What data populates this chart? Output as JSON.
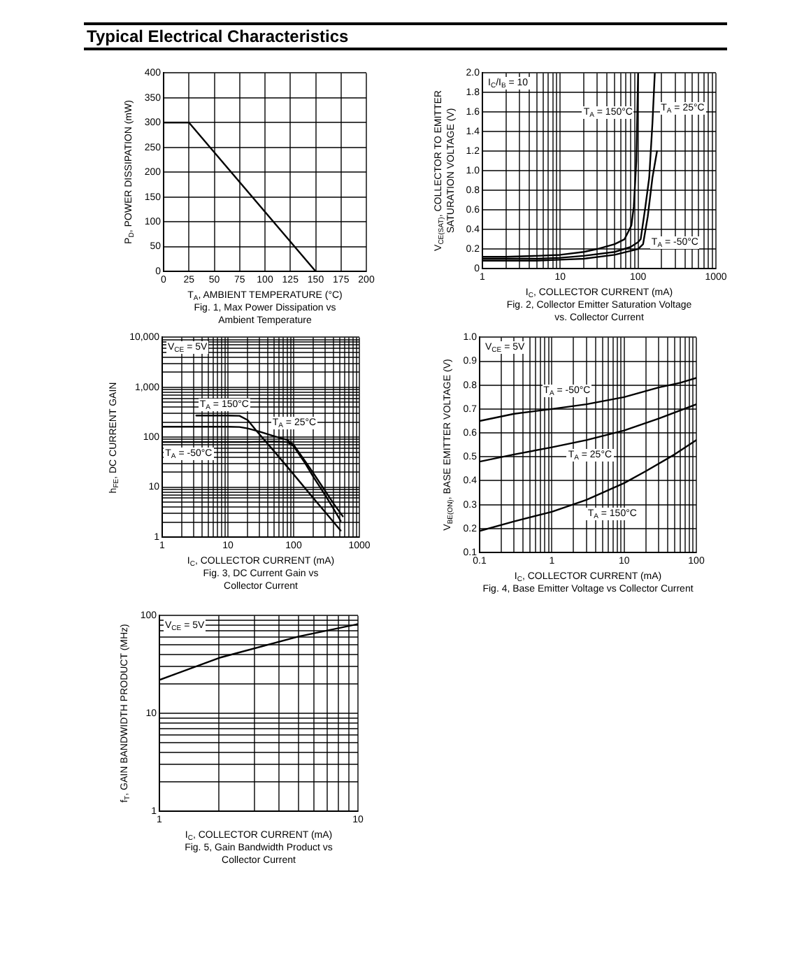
{
  "chart_data": [
    {
      "type": "line",
      "title": "Typical Electrical Characteristics",
      "xlabel": "T$_{A}$, AMBIENT TEMPERATURE (°C)",
      "ylabel": "P$_{D}$, POWER DISSIPATION (mW)",
      "annotations": [
        "Fig. 1, Max Power Dissipation vs\nAmbient Temperature"
      ],
      "x": [
        0,
        25,
        150
      ],
      "series": [
        {
          "color": "#000000",
          "values": [
            300,
            300,
            0
          ]
        }
      ],
      "xlim": [
        0,
        200
      ],
      "ylim": [
        0,
        400
      ],
      "xticks": [
        0,
        25,
        50,
        75,
        100,
        125,
        150,
        175,
        200
      ],
      "yticks": [
        0,
        50,
        100,
        150,
        200,
        250,
        300,
        350,
        400
      ],
      "grid": true,
      "legend": false,
      "marker": "none",
      "line_style": "solid"
    },
    {
      "type": "line",
      "xlabel": "I$_{C}$, COLLECTOR CURRENT (mA)",
      "ylabel": "V$_{CE(SAT)}$, COLLECTOR TO EMITTER\nSATURATION VOLTAGE (V)",
      "annotations": [
        "I$_{C}$/I$_{B}$ = 10",
        "Fig. 2, Collector Emitter Saturation Voltage\nvs. Collector Current"
      ],
      "series": [
        {
          "name": "T$_{A}$ = 150°C",
          "color": "#000000",
          "x": [
            1,
            2,
            5,
            10,
            20,
            30,
            50,
            67,
            82,
            88,
            95,
            100
          ],
          "values": [
            0.12,
            0.12,
            0.13,
            0.14,
            0.17,
            0.2,
            0.25,
            0.3,
            0.44,
            0.63,
            1.1,
            2.0
          ]
        },
        {
          "name": "T$_{A}$ = 25°C",
          "color": "#000000",
          "x": [
            1,
            2,
            5,
            10,
            20,
            50,
            80,
            100,
            108,
            124,
            139,
            153,
            164
          ],
          "values": [
            0.1,
            0.1,
            0.1,
            0.11,
            0.13,
            0.17,
            0.22,
            0.27,
            0.3,
            0.63,
            0.93,
            1.49,
            2.0
          ]
        },
        {
          "name": "T$_{A}$ = -50°C",
          "color": "#000000",
          "x": [
            1,
            2,
            5,
            10,
            20,
            50,
            100,
            116,
            133,
            153,
            175
          ],
          "values": [
            0.08,
            0.08,
            0.08,
            0.09,
            0.1,
            0.14,
            0.2,
            0.25,
            0.53,
            0.93,
            1.2
          ]
        }
      ],
      "log": "x",
      "xlim": [
        1,
        1000
      ],
      "ylim": [
        0,
        2
      ],
      "xticks": [
        1,
        {
          "value": 2,
          "label": null
        },
        {
          "value": 3,
          "label": null
        },
        {
          "value": 4,
          "label": null
        },
        {
          "value": 5,
          "label": null
        },
        {
          "value": 6,
          "label": null
        },
        {
          "value": 7,
          "label": null
        },
        {
          "value": 8,
          "label": null
        },
        {
          "value": 9,
          "label": null
        },
        10,
        {
          "value": 20,
          "label": null
        },
        {
          "value": 30,
          "label": null
        },
        {
          "value": 40,
          "label": null
        },
        {
          "value": 50,
          "label": null
        },
        {
          "value": 60,
          "label": null
        },
        {
          "value": 70,
          "label": null
        },
        {
          "value": 80,
          "label": null
        },
        {
          "value": 90,
          "label": null
        },
        100,
        {
          "value": 200,
          "label": null
        },
        {
          "value": 300,
          "label": null
        },
        {
          "value": 400,
          "label": null
        },
        {
          "value": 500,
          "label": null
        },
        {
          "value": 600,
          "label": null
        },
        {
          "value": 700,
          "label": null
        },
        {
          "value": 800,
          "label": null
        },
        {
          "value": 900,
          "label": null
        },
        1000
      ],
      "yticks": [
        0,
        0.2,
        0.4,
        0.6,
        0.8,
        {
          "value": 1,
          "label": "1.0"
        },
        1.2,
        1.4,
        1.6,
        1.8,
        {
          "value": 2,
          "label": "2.0"
        }
      ],
      "grid": true,
      "legend": false,
      "marker": "none",
      "line_style": "solid"
    },
    {
      "type": "line",
      "xlabel": "I$_{C}$, COLLECTOR CURRENT (mA)",
      "ylabel": "h$_{FE}$, DC CURRENT GAIN",
      "annotations": [
        "V$_{CE}$ = 5V",
        "Fig. 3, DC Current Gain vs\nCollector Current"
      ],
      "series": [
        {
          "name": "T$_{A}$ = 150°C",
          "color": "#000000",
          "x": [
            3.3,
            5,
            10,
            15,
            20,
            27,
            50,
            100,
            200,
            300,
            520
          ],
          "values": [
            271,
            271,
            271,
            268,
            220,
            136,
            53,
            18,
            6,
            3.2,
            1.35
          ]
        },
        {
          "name": "T$_{A}$ = 25°C",
          "color": "#000000",
          "x": [
            1,
            2,
            5,
            10,
            15,
            20,
            30,
            50,
            80,
            100,
            150,
            200,
            300,
            400,
            560
          ],
          "values": [
            162,
            162,
            162,
            162,
            160,
            150,
            130,
            105,
            88,
            70,
            33,
            19,
            8.5,
            4.8,
            2.6
          ]
        },
        {
          "name": "T$_{A}$ = -50°C",
          "color": "#000000",
          "x": [
            1,
            2,
            5,
            10,
            20,
            50,
            80,
            100,
            150,
            200,
            300,
            400,
            520
          ],
          "values": [
            80,
            80,
            80,
            80,
            80,
            82,
            80,
            66,
            30,
            16,
            7,
            3.8,
            2.1
          ]
        }
      ],
      "log": "xy",
      "xlim": [
        1,
        1000
      ],
      "ylim": [
        1,
        10000
      ],
      "xticks": [
        1,
        {
          "value": 2,
          "label": null
        },
        {
          "value": 3,
          "label": null
        },
        {
          "value": 4,
          "label": null
        },
        {
          "value": 5,
          "label": null
        },
        {
          "value": 6,
          "label": null
        },
        {
          "value": 7,
          "label": null
        },
        {
          "value": 8,
          "label": null
        },
        {
          "value": 9,
          "label": null
        },
        10,
        {
          "value": 20,
          "label": null
        },
        {
          "value": 30,
          "label": null
        },
        {
          "value": 40,
          "label": null
        },
        {
          "value": 50,
          "label": null
        },
        {
          "value": 60,
          "label": null
        },
        {
          "value": 70,
          "label": null
        },
        {
          "value": 80,
          "label": null
        },
        {
          "value": 90,
          "label": null
        },
        100,
        {
          "value": 200,
          "label": null
        },
        {
          "value": 300,
          "label": null
        },
        {
          "value": 400,
          "label": null
        },
        {
          "value": 500,
          "label": null
        },
        {
          "value": 600,
          "label": null
        },
        {
          "value": 700,
          "label": null
        },
        {
          "value": 800,
          "label": null
        },
        {
          "value": 900,
          "label": null
        },
        1000
      ],
      "yticks": [
        1,
        {
          "value": 2,
          "label": null
        },
        {
          "value": 3,
          "label": null
        },
        {
          "value": 4,
          "label": null
        },
        {
          "value": 5,
          "label": null
        },
        {
          "value": 6,
          "label": null
        },
        {
          "value": 7,
          "label": null
        },
        {
          "value": 8,
          "label": null
        },
        {
          "value": 9,
          "label": null
        },
        10,
        {
          "value": 20,
          "label": null
        },
        {
          "value": 30,
          "label": null
        },
        {
          "value": 40,
          "label": null
        },
        {
          "value": 50,
          "label": null
        },
        {
          "value": 60,
          "label": null
        },
        {
          "value": 70,
          "label": null
        },
        {
          "value": 80,
          "label": null
        },
        {
          "value": 90,
          "label": null
        },
        100,
        {
          "value": 200,
          "label": null
        },
        {
          "value": 300,
          "label": null
        },
        {
          "value": 400,
          "label": null
        },
        {
          "value": 500,
          "label": null
        },
        {
          "value": 600,
          "label": null
        },
        {
          "value": 700,
          "label": null
        },
        {
          "value": 800,
          "label": null
        },
        {
          "value": 900,
          "label": null
        },
        {
          "value": 1000,
          "label": "1,000"
        },
        {
          "value": 2000,
          "label": null
        },
        {
          "value": 3000,
          "label": null
        },
        {
          "value": 4000,
          "label": null
        },
        {
          "value": 5000,
          "label": null
        },
        {
          "value": 6000,
          "label": null
        },
        {
          "value": 7000,
          "label": null
        },
        {
          "value": 8000,
          "label": null
        },
        {
          "value": 9000,
          "label": null
        },
        {
          "value": 10000,
          "label": "10,000"
        }
      ],
      "grid": true,
      "legend": false,
      "marker": "none",
      "line_style": "solid"
    },
    {
      "type": "line",
      "xlabel": "I$_{C}$, COLLECTOR CURRENT (mA)",
      "ylabel": "V$_{BE(ON)}$, BASE EMITTER VOLTAGE (V)",
      "annotations": [
        "V$_{CE}$ = 5V",
        "Fig. 4, Base Emitter Voltage vs Collector Current"
      ],
      "series": [
        {
          "name": "T$_{A}$ = -50°C",
          "color": "#000000",
          "x": [
            0.1,
            0.3,
            1,
            3,
            10,
            30,
            60,
            100
          ],
          "values": [
            0.65,
            0.68,
            0.7,
            0.72,
            0.75,
            0.79,
            0.81,
            0.83
          ]
        },
        {
          "name": "T$_{A}$ = 25°C",
          "color": "#000000",
          "x": [
            0.1,
            0.3,
            1,
            3,
            10,
            30,
            100
          ],
          "values": [
            0.48,
            0.51,
            0.54,
            0.57,
            0.61,
            0.66,
            0.72
          ]
        },
        {
          "name": "T$_{A}$ = 150°C",
          "color": "#000000",
          "x": [
            0.1,
            0.3,
            1,
            3,
            10,
            20,
            50,
            100
          ],
          "values": [
            0.19,
            0.23,
            0.27,
            0.32,
            0.39,
            0.44,
            0.51,
            0.57
          ]
        }
      ],
      "log": "x",
      "xlim": [
        0.1,
        100
      ],
      "ylim": [
        0.1,
        1
      ],
      "xticks": [
        0.1,
        {
          "value": 0.2,
          "label": null
        },
        {
          "value": 0.3,
          "label": null
        },
        {
          "value": 0.4,
          "label": null
        },
        {
          "value": 0.5,
          "label": null
        },
        {
          "value": 0.6,
          "label": null
        },
        {
          "value": 0.7,
          "label": null
        },
        {
          "value": 0.8,
          "label": null
        },
        {
          "value": 0.9,
          "label": null
        },
        1,
        {
          "value": 2,
          "label": null
        },
        {
          "value": 3,
          "label": null
        },
        {
          "value": 4,
          "label": null
        },
        {
          "value": 5,
          "label": null
        },
        {
          "value": 6,
          "label": null
        },
        {
          "value": 7,
          "label": null
        },
        {
          "value": 8,
          "label": null
        },
        {
          "value": 9,
          "label": null
        },
        10,
        {
          "value": 20,
          "label": null
        },
        {
          "value": 30,
          "label": null
        },
        {
          "value": 40,
          "label": null
        },
        {
          "value": 50,
          "label": null
        },
        {
          "value": 60,
          "label": null
        },
        {
          "value": 70,
          "label": null
        },
        {
          "value": 80,
          "label": null
        },
        {
          "value": 90,
          "label": null
        },
        100
      ],
      "yticks": [
        0.1,
        0.2,
        0.3,
        0.4,
        0.5,
        0.6,
        0.7,
        0.8,
        0.9,
        {
          "value": 1,
          "label": "1.0"
        }
      ],
      "grid": true,
      "legend": false,
      "marker": "none",
      "line_style": "solid"
    },
    {
      "type": "line",
      "xlabel": "I$_{C}$, COLLECTOR CURRENT (mA)",
      "ylabel": "f$_{T}$, GAIN BANDWIDTH PRODUCT (MHz)",
      "annotations": [
        "V$_{CE}$ = 5V",
        "Fig. 5, Gain Bandwidth Product vs\nCollector Current"
      ],
      "x": [
        1,
        2,
        5,
        10
      ],
      "series": [
        {
          "color": "#000000",
          "values": [
            22,
            37,
            61,
            82
          ]
        }
      ],
      "log": "xy",
      "xlim": [
        1,
        10
      ],
      "ylim": [
        1,
        100
      ],
      "xticks": [
        1,
        {
          "value": 2,
          "label": null
        },
        {
          "value": 3,
          "label": null
        },
        {
          "value": 4,
          "label": null
        },
        {
          "value": 5,
          "label": null
        },
        {
          "value": 6,
          "label": null
        },
        {
          "value": 7,
          "label": null
        },
        {
          "value": 8,
          "label": null
        },
        {
          "value": 9,
          "label": null
        },
        10
      ],
      "yticks": [
        1,
        {
          "value": 2,
          "label": null
        },
        {
          "value": 3,
          "label": null
        },
        {
          "value": 4,
          "label": null
        },
        {
          "value": 5,
          "label": null
        },
        {
          "value": 6,
          "label": null
        },
        {
          "value": 7,
          "label": null
        },
        {
          "value": 8,
          "label": null
        },
        {
          "value": 9,
          "label": null
        },
        10,
        {
          "value": 20,
          "label": null
        },
        {
          "value": 30,
          "label": null
        },
        {
          "value": 40,
          "label": null
        },
        {
          "value": 50,
          "label": null
        },
        {
          "value": 60,
          "label": null
        },
        {
          "value": 70,
          "label": null
        },
        {
          "value": 80,
          "label": null
        },
        {
          "value": 90,
          "label": null
        },
        100
      ],
      "grid": true,
      "legend": false,
      "marker": "none",
      "line_style": "solid"
    }
  ]
}
